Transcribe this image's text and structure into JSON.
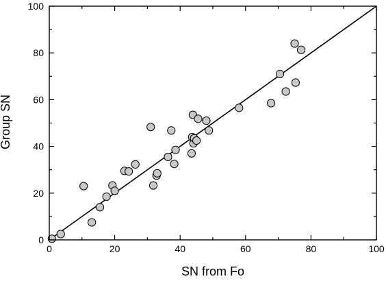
{
  "chart_data": {
    "type": "scatter",
    "xlabel": "SN from Fo",
    "ylabel": "Group SN",
    "xlim": [
      0,
      100
    ],
    "ylim": [
      0,
      100
    ],
    "xticks": [
      "0",
      "20",
      "40",
      "60",
      "80",
      "100"
    ],
    "yticks": [
      "0",
      "20",
      "40",
      "60",
      "80",
      "100"
    ],
    "grid": false,
    "reference_line": {
      "from": [
        0,
        0
      ],
      "to": [
        100,
        100
      ]
    },
    "marker_color": "#c8c8c8",
    "points": [
      [
        0.8,
        0.5
      ],
      [
        3.5,
        2.5
      ],
      [
        10.5,
        23.0
      ],
      [
        13.0,
        7.5
      ],
      [
        15.5,
        14.0
      ],
      [
        17.5,
        18.5
      ],
      [
        19.3,
        23.3
      ],
      [
        20.0,
        21.0
      ],
      [
        23.0,
        29.5
      ],
      [
        24.3,
        29.3
      ],
      [
        26.3,
        32.3
      ],
      [
        31.0,
        48.3
      ],
      [
        31.8,
        23.3
      ],
      [
        32.8,
        27.5
      ],
      [
        33.0,
        28.5
      ],
      [
        36.3,
        35.5
      ],
      [
        37.3,
        46.8
      ],
      [
        38.2,
        32.5
      ],
      [
        38.6,
        38.5
      ],
      [
        43.5,
        37.0
      ],
      [
        43.7,
        44.0
      ],
      [
        43.9,
        53.5
      ],
      [
        44.1,
        41.3
      ],
      [
        44.3,
        43.5
      ],
      [
        45.0,
        42.5
      ],
      [
        45.5,
        51.8
      ],
      [
        48.0,
        51.0
      ],
      [
        48.8,
        46.8
      ],
      [
        58.0,
        56.5
      ],
      [
        67.8,
        58.5
      ],
      [
        70.5,
        71.0
      ],
      [
        72.3,
        63.5
      ],
      [
        75.0,
        84.0
      ],
      [
        75.3,
        67.3
      ],
      [
        77.0,
        81.3
      ]
    ]
  }
}
